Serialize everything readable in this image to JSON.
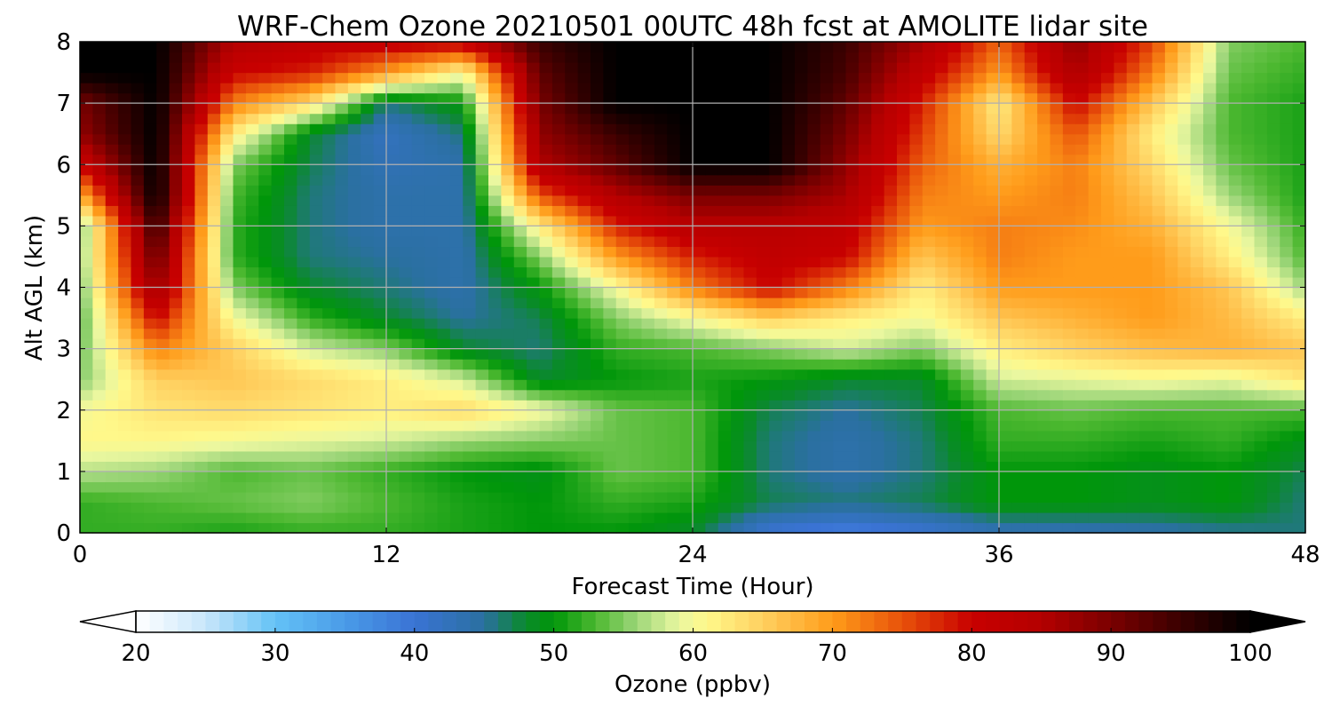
{
  "chart_data": {
    "type": "heatmap",
    "title": "WRF-Chem Ozone  20210501 00UTC 48h fcst at AMOLITE lidar site",
    "xlabel": "Forecast Time (Hour)",
    "ylabel": "Alt AGL (km)",
    "xlim": [
      0,
      48
    ],
    "ylim": [
      0,
      8
    ],
    "xticks": [
      0,
      12,
      24,
      36,
      48
    ],
    "yticks": [
      0,
      1,
      2,
      3,
      4,
      5,
      6,
      7,
      8
    ],
    "grid": true,
    "x": [
      0,
      3,
      6,
      9,
      12,
      15,
      18,
      21,
      24,
      27,
      30,
      33,
      36,
      39,
      42,
      45,
      48
    ],
    "y": [
      0,
      0.5,
      1,
      1.5,
      2,
      2.5,
      3,
      3.5,
      4,
      4.5,
      5,
      5.5,
      6,
      6.5,
      7,
      7.5,
      8
    ],
    "z": [
      [
        52,
        52,
        51,
        52,
        52,
        51,
        50,
        50,
        48,
        40,
        38,
        40,
        43,
        43,
        44,
        45,
        46
      ],
      [
        52,
        53,
        54,
        55,
        53,
        51,
        50,
        52,
        51,
        47,
        46,
        47,
        50,
        50,
        49,
        50,
        46
      ],
      [
        57,
        56,
        53,
        54,
        52,
        50,
        49,
        54,
        53,
        46,
        44,
        46,
        50,
        50,
        49,
        50,
        47
      ],
      [
        61,
        61,
        60,
        59,
        58,
        56,
        55,
        54,
        53,
        46,
        44,
        46,
        52,
        52,
        51,
        52,
        49
      ],
      [
        60,
        63,
        64,
        63,
        62,
        64,
        60,
        54,
        53,
        47,
        45,
        47,
        53,
        54,
        53,
        53,
        53
      ],
      [
        55,
        65,
        66,
        64,
        62,
        58,
        48,
        50,
        51,
        50,
        48,
        48,
        58,
        59,
        60,
        59,
        63
      ],
      [
        54,
        72,
        65,
        58,
        55,
        48,
        46,
        52,
        53,
        55,
        58,
        55,
        62,
        65,
        67,
        68,
        66
      ],
      [
        53,
        80,
        60,
        52,
        48,
        45,
        47,
        55,
        60,
        65,
        62,
        60,
        66,
        68,
        70,
        67,
        62
      ],
      [
        54,
        88,
        55,
        48,
        46,
        44,
        50,
        60,
        72,
        80,
        72,
        62,
        70,
        70,
        70,
        66,
        56
      ],
      [
        55,
        92,
        52,
        46,
        45,
        44,
        55,
        70,
        78,
        82,
        80,
        66,
        72,
        70,
        70,
        62,
        53
      ],
      [
        54,
        96,
        52,
        46,
        44,
        44,
        62,
        78,
        84,
        84,
        82,
        70,
        72,
        71,
        68,
        60,
        52
      ],
      [
        68,
        100,
        53,
        46,
        44,
        44,
        75,
        85,
        90,
        90,
        86,
        72,
        70,
        72,
        66,
        56,
        51
      ],
      [
        80,
        100,
        55,
        47,
        43,
        44,
        85,
        92,
        100,
        100,
        88,
        74,
        68,
        72,
        64,
        54,
        51
      ],
      [
        88,
        100,
        62,
        48,
        42,
        46,
        88,
        95,
        100,
        100,
        90,
        76,
        64,
        75,
        62,
        53,
        51
      ],
      [
        90,
        100,
        72,
        64,
        46,
        50,
        90,
        100,
        100,
        100,
        92,
        78,
        62,
        80,
        66,
        53,
        51
      ],
      [
        100,
        100,
        80,
        78,
        70,
        60,
        92,
        100,
        100,
        100,
        94,
        82,
        70,
        86,
        72,
        54,
        52
      ],
      [
        100,
        100,
        85,
        82,
        82,
        82,
        95,
        100,
        100,
        100,
        95,
        86,
        74,
        88,
        76,
        55,
        53
      ]
    ],
    "colorbar": {
      "label": "Ozone  (ppbv)",
      "min": 20,
      "max": 100,
      "ticks": [
        20,
        30,
        40,
        50,
        60,
        70,
        80,
        90,
        100
      ],
      "extend": "both",
      "colors": [
        {
          "v": 20,
          "c": "#ffffff"
        },
        {
          "v": 25,
          "c": "#c8e6fa"
        },
        {
          "v": 30,
          "c": "#64c2f6"
        },
        {
          "v": 35,
          "c": "#4a9be8"
        },
        {
          "v": 40,
          "c": "#3a73d4"
        },
        {
          "v": 45,
          "c": "#2a70a0"
        },
        {
          "v": 48,
          "c": "#0a8a2a"
        },
        {
          "v": 50,
          "c": "#00960a"
        },
        {
          "v": 53,
          "c": "#4cb830"
        },
        {
          "v": 56,
          "c": "#9ed67a"
        },
        {
          "v": 59,
          "c": "#eaf7a0"
        },
        {
          "v": 61,
          "c": "#fff88a"
        },
        {
          "v": 65,
          "c": "#ffd060"
        },
        {
          "v": 70,
          "c": "#ff9c1a"
        },
        {
          "v": 75,
          "c": "#e8520a"
        },
        {
          "v": 80,
          "c": "#c80000"
        },
        {
          "v": 85,
          "c": "#b40000"
        },
        {
          "v": 90,
          "c": "#7a0000"
        },
        {
          "v": 95,
          "c": "#3a0000"
        },
        {
          "v": 100,
          "c": "#000000"
        }
      ]
    }
  }
}
